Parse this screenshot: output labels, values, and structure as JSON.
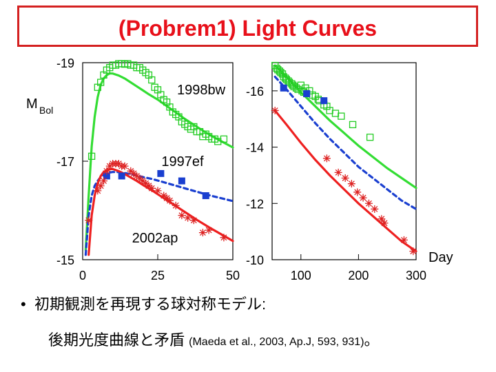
{
  "title": "(Probrem1) Light Curves",
  "chart_data": [
    {
      "type": "scatter",
      "panel": "left",
      "ylabel_main": "M",
      "ylabel_sub": "Bol",
      "xlim": [
        0,
        50
      ],
      "ylim": [
        -19,
        -15
      ],
      "xticks": [
        0,
        25,
        50
      ],
      "yticks": [
        -19,
        -17,
        -15
      ],
      "series": [
        {
          "name": "1998bw",
          "color": "#22cc22",
          "marker": "square-open",
          "x": [
            3,
            5,
            6,
            7,
            8,
            9,
            10,
            11,
            12,
            13,
            14,
            15,
            16,
            17,
            18,
            19,
            20,
            21,
            22,
            23,
            24,
            25,
            26,
            27,
            28,
            29,
            30,
            31,
            32,
            33,
            34,
            35,
            36,
            37,
            38,
            39,
            40,
            41,
            42,
            43,
            44,
            45,
            47
          ],
          "y": [
            -17.1,
            -18.5,
            -18.6,
            -18.75,
            -18.85,
            -18.9,
            -18.95,
            -18.95,
            -18.98,
            -18.98,
            -18.97,
            -18.98,
            -18.95,
            -18.95,
            -18.9,
            -18.9,
            -18.85,
            -18.8,
            -18.75,
            -18.65,
            -18.5,
            -18.45,
            -18.35,
            -18.25,
            -18.2,
            -18.1,
            -18.0,
            -17.95,
            -17.9,
            -17.8,
            -17.75,
            -17.7,
            -17.65,
            -17.7,
            -17.6,
            -17.6,
            -17.5,
            -17.55,
            -17.5,
            -17.45,
            -17.45,
            -17.4,
            -17.45
          ]
        },
        {
          "name": "1997ef",
          "color": "#1a3fd0",
          "marker": "square-filled",
          "x": [
            8,
            13,
            26,
            33,
            41
          ],
          "y": [
            -16.7,
            -16.7,
            -16.75,
            -16.6,
            -16.3
          ]
        },
        {
          "name": "2002ap",
          "color": "#dd2222",
          "marker": "asterisk",
          "x": [
            2,
            5,
            6,
            7,
            8,
            9,
            10,
            11,
            12,
            13,
            14,
            16,
            17,
            18,
            19,
            20,
            21,
            22,
            23,
            25,
            27,
            28,
            29,
            31,
            33,
            35,
            37,
            40,
            42,
            47
          ],
          "y": [
            -15.8,
            -16.4,
            -16.5,
            -16.6,
            -16.8,
            -16.9,
            -16.95,
            -16.95,
            -16.95,
            -16.9,
            -16.9,
            -16.8,
            -16.75,
            -16.7,
            -16.65,
            -16.6,
            -16.55,
            -16.5,
            -16.45,
            -16.4,
            -16.3,
            -16.25,
            -16.2,
            -16.1,
            -15.9,
            -15.85,
            -15.8,
            -15.55,
            -15.6,
            -15.45
          ]
        }
      ],
      "model_curves": [
        {
          "name": "1998bw model",
          "color": "#33dd33",
          "style": "solid",
          "x": [
            1,
            2,
            3,
            4,
            5,
            6,
            7,
            8,
            9,
            10,
            12,
            14,
            16,
            18,
            20,
            22,
            25,
            28,
            31,
            34,
            37,
            40,
            43,
            46,
            50
          ],
          "y": [
            -15.2,
            -16.3,
            -17.3,
            -17.9,
            -18.3,
            -18.55,
            -18.68,
            -18.75,
            -18.78,
            -18.78,
            -18.74,
            -18.68,
            -18.6,
            -18.52,
            -18.44,
            -18.36,
            -18.25,
            -18.12,
            -17.99,
            -17.86,
            -17.74,
            -17.62,
            -17.51,
            -17.41,
            -17.28
          ]
        },
        {
          "name": "1997ef model",
          "color": "#1a3fd0",
          "style": "dashed",
          "x": [
            1,
            2,
            3,
            4,
            5,
            6,
            7,
            8,
            9,
            10,
            12,
            14,
            16,
            18,
            20,
            23,
            26,
            30,
            34,
            38,
            42,
            46,
            50
          ],
          "y": [
            -15.1,
            -15.9,
            -16.3,
            -16.5,
            -16.6,
            -16.68,
            -16.72,
            -16.75,
            -16.77,
            -16.78,
            -16.78,
            -16.76,
            -16.74,
            -16.71,
            -16.68,
            -16.64,
            -16.59,
            -16.52,
            -16.45,
            -16.38,
            -16.31,
            -16.25,
            -16.19
          ]
        },
        {
          "name": "2002ap model",
          "color": "#ee2020",
          "style": "solid",
          "x": [
            2,
            3,
            4,
            5,
            6,
            7,
            8,
            9,
            10,
            11,
            12,
            14,
            16,
            18,
            20,
            23,
            26,
            30,
            34,
            38,
            42,
            46,
            50
          ],
          "y": [
            -15.1,
            -15.9,
            -16.3,
            -16.55,
            -16.7,
            -16.78,
            -16.82,
            -16.84,
            -16.84,
            -16.82,
            -16.8,
            -16.74,
            -16.67,
            -16.6,
            -16.52,
            -16.41,
            -16.29,
            -16.13,
            -15.97,
            -15.81,
            -15.66,
            -15.52,
            -15.38
          ]
        }
      ],
      "annotations": [
        "1998bw",
        "1997ef",
        "2002ap"
      ]
    },
    {
      "type": "scatter",
      "panel": "right",
      "xlabel": "Day",
      "xlim": [
        50,
        300
      ],
      "ylim": [
        -17,
        -10
      ],
      "xticks": [
        100,
        200,
        300
      ],
      "yticks": [
        -16,
        -14,
        -12,
        -10
      ],
      "series": [
        {
          "name": "1998bw",
          "color": "#22cc22",
          "marker": "square-open",
          "x": [
            55,
            58,
            60,
            63,
            65,
            68,
            70,
            73,
            75,
            78,
            80,
            84,
            86,
            88,
            92,
            95,
            100,
            102,
            105,
            108,
            110,
            115,
            120,
            125,
            130,
            132,
            140,
            145,
            150,
            160,
            170,
            190,
            220
          ],
          "y": [
            -16.9,
            -16.8,
            -16.75,
            -16.7,
            -16.65,
            -16.6,
            -16.5,
            -16.45,
            -16.4,
            -16.35,
            -16.3,
            -16.25,
            -16.2,
            -16.15,
            -16.1,
            -16.05,
            -16.2,
            -16.0,
            -15.95,
            -16.1,
            -15.9,
            -16.0,
            -15.85,
            -15.8,
            -15.7,
            -15.65,
            -15.5,
            -15.45,
            -15.3,
            -15.2,
            -15.1,
            -14.8,
            -14.35
          ]
        },
        {
          "name": "1997ef",
          "color": "#1a3fd0",
          "marker": "square-filled",
          "x": [
            70,
            110,
            140
          ],
          "y": [
            -16.1,
            -15.9,
            -15.65
          ]
        },
        {
          "name": "2002ap",
          "color": "#dd2222",
          "marker": "asterisk",
          "x": [
            55,
            145,
            165,
            177,
            188,
            198,
            208,
            218,
            228,
            240,
            245,
            279,
            295
          ],
          "y": [
            -15.3,
            -13.6,
            -13.1,
            -12.9,
            -12.7,
            -12.4,
            -12.2,
            -12.0,
            -11.8,
            -11.45,
            -11.3,
            -10.7,
            -10.3
          ]
        }
      ],
      "model_curves": [
        {
          "name": "1998bw model",
          "color": "#33dd33",
          "style": "solid",
          "x": [
            55,
            75,
            100,
            125,
            150,
            175,
            200,
            225,
            250,
            275,
            300
          ],
          "y": [
            -16.9,
            -16.5,
            -15.95,
            -15.45,
            -14.95,
            -14.5,
            -14.05,
            -13.65,
            -13.25,
            -12.9,
            -12.55
          ]
        },
        {
          "name": "1997ef model",
          "color": "#1a3fd0",
          "style": "dashed",
          "x": [
            55,
            75,
            100,
            125,
            150,
            175,
            200,
            225,
            250,
            275,
            300
          ],
          "y": [
            -16.5,
            -16.05,
            -15.45,
            -14.85,
            -14.3,
            -13.8,
            -13.3,
            -12.9,
            -12.5,
            -12.1,
            -11.8
          ]
        },
        {
          "name": "2002ap model",
          "color": "#ee2020",
          "style": "solid",
          "x": [
            55,
            75,
            100,
            125,
            150,
            175,
            200,
            225,
            250,
            275,
            300
          ],
          "y": [
            -15.3,
            -14.8,
            -14.15,
            -13.55,
            -13.0,
            -12.5,
            -12.0,
            -11.55,
            -11.1,
            -10.65,
            -10.3
          ]
        }
      ]
    }
  ],
  "bullet": {
    "mark": "•",
    "line1": "初期観測を再現する球対称モデル:",
    "line2_main": "後期光度曲線と矛盾",
    "line2_ref": "(Maeda et al., 2003, Ap.J, 593, 931)",
    "line2_end": "。"
  }
}
